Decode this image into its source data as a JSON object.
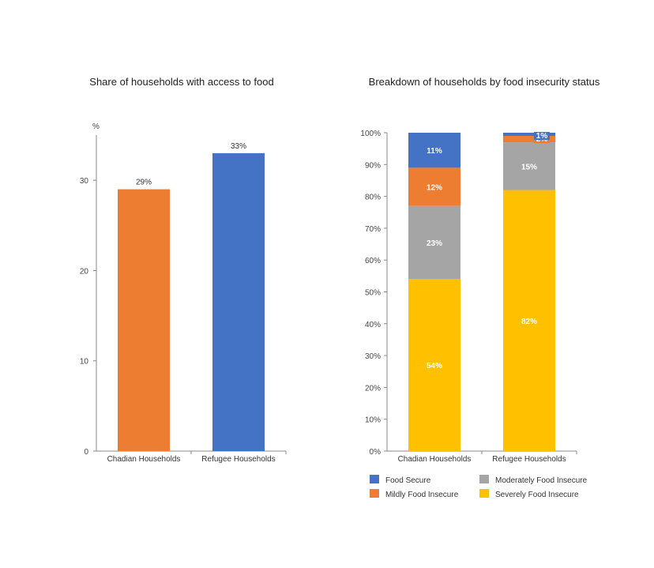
{
  "chart_data": [
    {
      "type": "bar",
      "title": "Share of households with access to food",
      "ylabel": "%",
      "xlabel": "",
      "ylim": [
        0,
        35
      ],
      "yticks": [
        0,
        10,
        20,
        30
      ],
      "categories": [
        "Chadian Households",
        "Refugee Households"
      ],
      "values": [
        29,
        33
      ],
      "value_labels": [
        "29%",
        "33%"
      ],
      "colors": [
        "#ED7D31",
        "#4472C4"
      ],
      "grid": false,
      "legend": "none"
    },
    {
      "type": "bar",
      "stacked": true,
      "title": "Breakdown of households by food insecurity status",
      "xlabel": "",
      "ylabel": "",
      "ylim": [
        0,
        100
      ],
      "yticks": [
        "0%",
        "10%",
        "20%",
        "30%",
        "40%",
        "50%",
        "60%",
        "70%",
        "80%",
        "90%",
        "100%"
      ],
      "categories": [
        "Chadian Households",
        "Refugee Households"
      ],
      "series": [
        {
          "name": "Severely Food Insecure",
          "color": "#FFC000",
          "values": [
            54,
            82
          ],
          "labels": [
            "54%",
            "82%"
          ]
        },
        {
          "name": "Moderately Food Insecure",
          "color": "#A5A5A5",
          "values": [
            23,
            15
          ],
          "labels": [
            "23%",
            "15%"
          ]
        },
        {
          "name": "Mildly Food Insecure",
          "color": "#ED7D31",
          "values": [
            12,
            2
          ],
          "labels": [
            "12%",
            "2%"
          ]
        },
        {
          "name": "Food Secure",
          "color": "#4472C4",
          "values": [
            11,
            1
          ],
          "labels": [
            "11%",
            "1%"
          ]
        }
      ],
      "legend": "bottom",
      "legend_order": [
        "Food Secure",
        "Moderately Food Insecure",
        "Mildly Food Insecure",
        "Severely Food Insecure"
      ],
      "grid": false
    }
  ]
}
